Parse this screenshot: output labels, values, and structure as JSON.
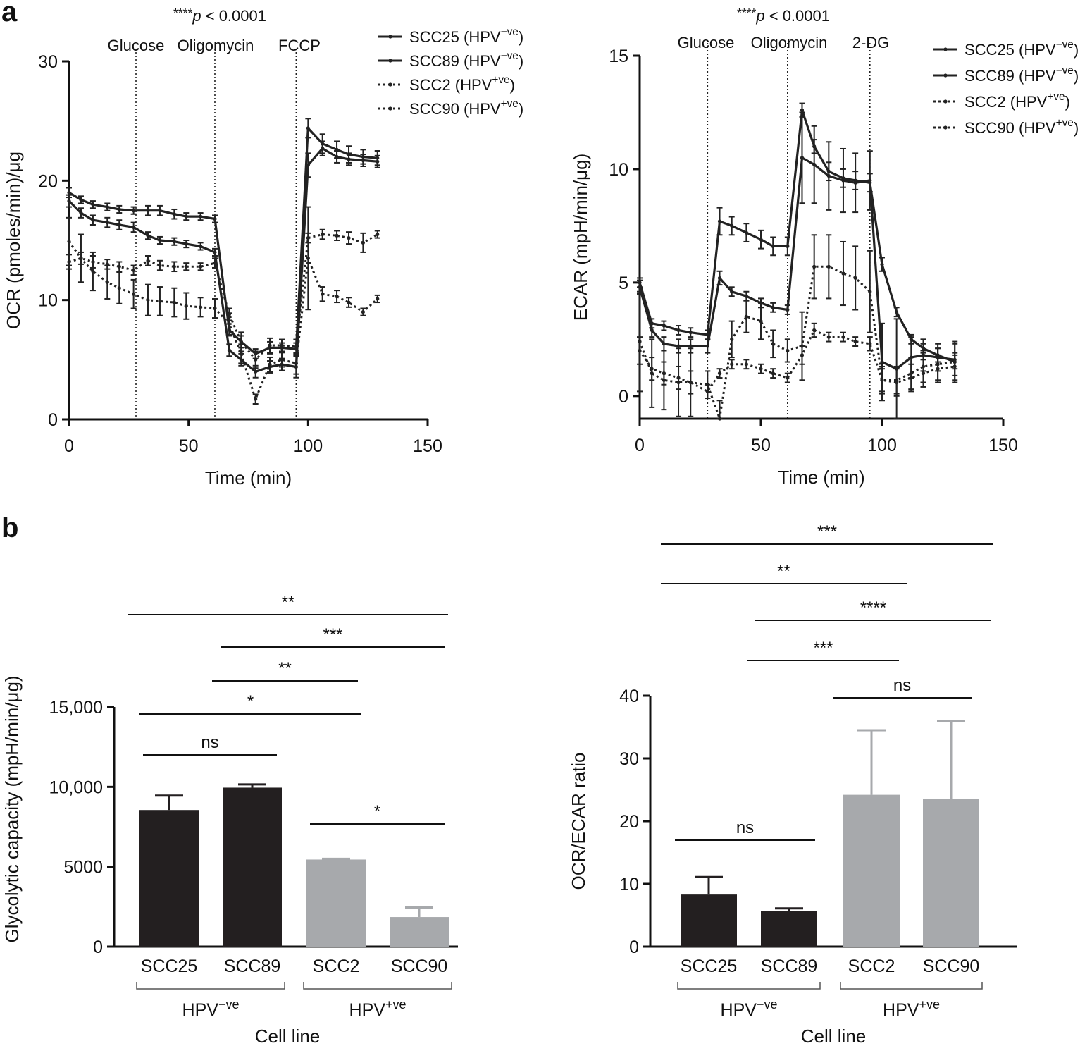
{
  "panel_labels": {
    "a": "a",
    "b": "b"
  },
  "chart_data": [
    {
      "type": "line",
      "id": "ocr",
      "title": "****p < 0.0001",
      "xlabel": "Time (min)",
      "ylabel": "OCR (pmoles/min)/μg",
      "xlim": [
        0,
        150
      ],
      "ylim": [
        0,
        30
      ],
      "xticks": [
        0,
        50,
        100,
        150
      ],
      "yticks": [
        0,
        10,
        20,
        30
      ],
      "injections": [
        {
          "label": "Glucose",
          "x": 28
        },
        {
          "label": "Oligomycin",
          "x": 61
        },
        {
          "label": "FCCP",
          "x": 95
        }
      ],
      "x": [
        0,
        5,
        10,
        16,
        21,
        27,
        33,
        38,
        44,
        49,
        55,
        61,
        67,
        72,
        78,
        84,
        89,
        95,
        100,
        106,
        112,
        117,
        123,
        129
      ],
      "series": [
        {
          "name": "SCC25 (HPV−ve)",
          "legend": "SCC25 (HPV",
          "sup": "−ve",
          "style": "solid",
          "values": [
            19.0,
            18.4,
            18.0,
            17.8,
            17.6,
            17.5,
            17.5,
            17.5,
            17.2,
            17.0,
            17.0,
            16.8,
            7.5,
            6.5,
            5.5,
            6.0,
            6.0,
            5.9,
            24.4,
            23.1,
            22.6,
            22.2,
            22.0,
            21.9
          ],
          "err": [
            0.4,
            0.3,
            0.3,
            0.3,
            0.3,
            0.3,
            0.4,
            0.4,
            0.4,
            0.3,
            0.3,
            0.3,
            0.5,
            0.5,
            0.4,
            0.5,
            0.4,
            0.5,
            0.8,
            0.8,
            0.7,
            0.7,
            0.6,
            0.6
          ]
        },
        {
          "name": "SCC89 (HPV−ve)",
          "legend": "SCC89 (HPV",
          "sup": "−ve",
          "style": "solid",
          "values": [
            18.3,
            17.3,
            16.7,
            16.5,
            16.3,
            16.1,
            15.4,
            15.0,
            14.9,
            14.7,
            14.5,
            14.0,
            5.8,
            5.0,
            4.0,
            4.4,
            4.6,
            4.4,
            21.3,
            22.7,
            22.0,
            21.8,
            21.7,
            21.6
          ],
          "err": [
            0.5,
            0.4,
            0.4,
            0.4,
            0.4,
            0.4,
            0.3,
            0.3,
            0.3,
            0.3,
            0.3,
            0.3,
            0.5,
            0.5,
            0.5,
            0.5,
            0.5,
            0.9,
            1.0,
            0.6,
            0.5,
            0.5,
            0.5,
            0.5
          ]
        },
        {
          "name": "SCC2 (HPV+ve)",
          "legend": "SCC2 (HPV",
          "sup": "+ve",
          "style": "dotted",
          "values": [
            13.2,
            13.5,
            13.2,
            13.0,
            12.8,
            12.5,
            13.3,
            12.9,
            12.8,
            12.8,
            12.8,
            13.1,
            8.8,
            6.5,
            5.0,
            6.2,
            6.2,
            6.1,
            15.2,
            15.5,
            15.4,
            15.2,
            14.8,
            15.5
          ],
          "err": [
            0.6,
            0.5,
            0.5,
            0.4,
            0.4,
            0.4,
            0.4,
            0.4,
            0.4,
            0.3,
            0.3,
            0.4,
            0.5,
            0.8,
            0.7,
            0.6,
            0.5,
            0.6,
            0.4,
            0.4,
            0.4,
            0.5,
            0.8,
            0.3
          ]
        },
        {
          "name": "SCC90 (HPV+ve)",
          "legend": "SCC90 (HPV",
          "sup": "+ve",
          "style": "dotted",
          "values": [
            14.9,
            13.5,
            12.4,
            11.5,
            11.0,
            10.5,
            10.0,
            9.9,
            9.8,
            9.5,
            9.4,
            9.3,
            8.0,
            5.5,
            1.7,
            4.6,
            5.0,
            4.7,
            13.5,
            10.5,
            10.3,
            9.8,
            9.0,
            10.1
          ],
          "err": [
            2.0,
            2.0,
            1.6,
            1.4,
            1.3,
            1.2,
            1.3,
            1.2,
            1.2,
            1.1,
            0.8,
            0.8,
            0.9,
            0.8,
            0.4,
            0.6,
            0.6,
            0.9,
            4.3,
            0.6,
            0.5,
            0.4,
            0.3,
            0.3
          ]
        }
      ]
    },
    {
      "type": "line",
      "id": "ecar",
      "title": "****p < 0.0001",
      "xlabel": "Time (min)",
      "ylabel": "ECAR (mpH/min/μg)",
      "xlim": [
        0,
        150
      ],
      "ylim": [
        -1,
        15
      ],
      "xticks": [
        0,
        50,
        100,
        150
      ],
      "yticks": [
        0,
        5,
        10,
        15
      ],
      "injections": [
        {
          "label": "Glucose",
          "x": 28
        },
        {
          "label": "Oligomycin",
          "x": 61
        },
        {
          "label": "2-DG",
          "x": 95
        }
      ],
      "x": [
        0,
        5,
        10,
        16,
        21,
        28,
        33,
        38,
        44,
        50,
        55,
        61,
        67,
        72,
        78,
        84,
        89,
        95,
        100,
        106,
        112,
        117,
        123,
        130
      ],
      "series": [
        {
          "name": "SCC25 (HPV−ve)",
          "legend": "SCC25 (HPV",
          "sup": "−ve",
          "style": "solid",
          "values": [
            5.0,
            3.2,
            3.1,
            2.9,
            2.8,
            2.7,
            7.7,
            7.5,
            7.2,
            6.9,
            6.6,
            6.6,
            12.6,
            11.0,
            9.9,
            9.6,
            9.5,
            9.4,
            5.8,
            3.7,
            2.5,
            2.1,
            1.8,
            1.5
          ],
          "err": [
            0.2,
            0.2,
            0.2,
            0.2,
            0.2,
            0.2,
            0.6,
            0.4,
            0.4,
            0.4,
            0.4,
            0.4,
            0.3,
            0.3,
            0.4,
            0.4,
            0.4,
            0.4,
            0.3,
            0.2,
            0.2,
            0.2,
            0.3,
            0.3
          ]
        },
        {
          "name": "SCC89 (HPV−ve)",
          "legend": "SCC89 (HPV",
          "sup": "−ve",
          "style": "solid",
          "values": [
            4.8,
            2.9,
            2.3,
            2.2,
            2.2,
            2.2,
            5.2,
            4.6,
            4.4,
            4.1,
            3.9,
            3.8,
            10.5,
            10.2,
            9.7,
            9.5,
            9.4,
            9.5,
            1.5,
            1.2,
            1.7,
            1.8,
            1.7,
            1.6
          ],
          "err": [
            0.3,
            0.3,
            0.3,
            0.3,
            0.3,
            0.3,
            0.3,
            0.2,
            0.2,
            0.2,
            0.2,
            0.2,
            2.0,
            1.7,
            1.5,
            1.4,
            1.3,
            1.3,
            1.7,
            2.2,
            0.9,
            0.7,
            0.6,
            0.7
          ]
        },
        {
          "name": "SCC2 (HPV+ve)",
          "legend": "SCC2 (HPV",
          "sup": "+ve",
          "style": "dotted",
          "values": [
            2.0,
            1.2,
            1.0,
            0.8,
            0.6,
            0.2,
            1.0,
            1.4,
            1.4,
            1.2,
            1.0,
            0.8,
            1.8,
            2.9,
            2.6,
            2.6,
            2.4,
            2.3,
            0.7,
            0.6,
            0.8,
            1.0,
            1.2,
            1.3
          ],
          "err": [
            0.6,
            0.5,
            0.5,
            0.5,
            0.5,
            0.3,
            0.2,
            0.2,
            0.2,
            0.2,
            0.2,
            0.2,
            0.4,
            0.3,
            0.2,
            0.2,
            0.2,
            0.3,
            0.6,
            0.6,
            0.6,
            0.6,
            0.6,
            0.6
          ]
        },
        {
          "name": "SCC90 (HPV+ve)",
          "legend": "SCC90 (HPV",
          "sup": "+ve",
          "style": "dotted",
          "values": [
            2.4,
            1.0,
            0.7,
            0.6,
            0.6,
            0.5,
            -1.0,
            2.5,
            3.5,
            3.3,
            2.3,
            2.0,
            2.2,
            5.7,
            5.7,
            5.4,
            5.2,
            4.6,
            0.7,
            0.7,
            1.0,
            1.3,
            1.4,
            1.5
          ],
          "err": [
            2.2,
            1.5,
            1.3,
            1.5,
            1.5,
            0.6,
            0.8,
            0.8,
            0.7,
            0.8,
            0.6,
            0.5,
            1.5,
            1.4,
            1.4,
            1.4,
            1.4,
            1.8,
            0.5,
            0.6,
            0.7,
            0.7,
            0.7,
            0.9
          ]
        }
      ]
    },
    {
      "type": "bar",
      "id": "glycolytic",
      "xlabel": "Cell line",
      "ylabel": "Glycolytic capacity (mpH/min/μg)",
      "ylim": [
        0,
        15000
      ],
      "yticks": [
        0,
        5000,
        10000,
        15000
      ],
      "ytick_labels": [
        "0",
        "5000",
        "10,000",
        "15,000"
      ],
      "categories": [
        "SCC25",
        "SCC89",
        "SCC2",
        "SCC90"
      ],
      "values": [
        8550,
        9950,
        5450,
        1850
      ],
      "err": [
        900,
        200,
        50,
        600
      ],
      "colors": [
        "#231f20",
        "#231f20",
        "#a7a9ac",
        "#a7a9ac"
      ],
      "groups": [
        {
          "label": "HPV",
          "sup": "−ve",
          "members": [
            0,
            1
          ]
        },
        {
          "label": "HPV",
          "sup": "+ve",
          "members": [
            2,
            3
          ]
        }
      ],
      "significance": [
        {
          "from": 0,
          "to": 1,
          "label": "ns"
        },
        {
          "from": 0,
          "to": 2,
          "label": "*"
        },
        {
          "from": 1,
          "to": 2,
          "label": "**"
        },
        {
          "from": 1,
          "to": 3,
          "label": "***"
        },
        {
          "from": 0,
          "to": 3,
          "label": "**"
        },
        {
          "from": 2,
          "to": 3,
          "label": "*"
        }
      ]
    },
    {
      "type": "bar",
      "id": "ratio",
      "xlabel": "Cell line",
      "ylabel": "OCR/ECAR ratio",
      "ylim": [
        0,
        40
      ],
      "yticks": [
        0,
        10,
        20,
        30,
        40
      ],
      "ytick_labels": [
        "0",
        "10",
        "20",
        "30",
        "40"
      ],
      "categories": [
        "SCC25",
        "SCC89",
        "SCC2",
        "SCC90"
      ],
      "values": [
        8.3,
        5.7,
        24.2,
        23.5
      ],
      "err": [
        2.8,
        0.4,
        10.3,
        12.5
      ],
      "colors": [
        "#231f20",
        "#231f20",
        "#a7a9ac",
        "#a7a9ac"
      ],
      "groups": [
        {
          "label": "HPV",
          "sup": "−ve",
          "members": [
            0,
            1
          ]
        },
        {
          "label": "HPV",
          "sup": "+ve",
          "members": [
            2,
            3
          ]
        }
      ],
      "significance": [
        {
          "from": 0,
          "to": 1,
          "label": "ns"
        },
        {
          "from": 2,
          "to": 3,
          "label": "ns"
        },
        {
          "from": 1,
          "to": 2,
          "label": "***"
        },
        {
          "from": 1,
          "to": 3,
          "label": "****"
        },
        {
          "from": 0,
          "to": 2,
          "label": "**"
        },
        {
          "from": 0,
          "to": 3,
          "label": "***"
        }
      ]
    }
  ]
}
